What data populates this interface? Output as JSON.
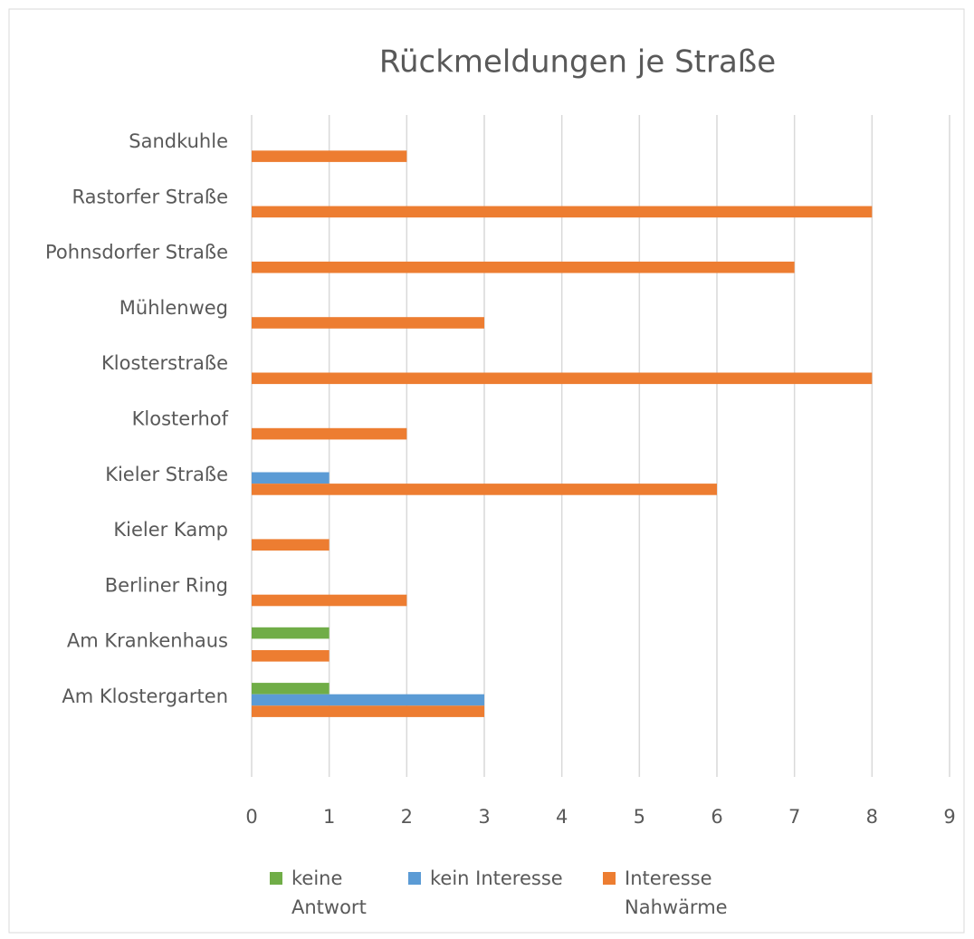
{
  "chart_data": {
    "type": "bar",
    "orientation": "horizontal",
    "title": "Rückmeldungen je Straße",
    "categories": [
      "Sandkuhle",
      "Rastorfer Straße",
      "Pohnsdorfer Straße",
      "Mühlenweg",
      "Klosterstraße",
      "Klosterhof",
      "Kieler Straße",
      "Kieler Kamp",
      "Berliner Ring",
      "Am Krankenhaus",
      "Am Klostergarten"
    ],
    "series": [
      {
        "name": "keine Antwort",
        "color": "#70ad47",
        "values": [
          0,
          0,
          0,
          0,
          0,
          0,
          0,
          0,
          0,
          1,
          1
        ]
      },
      {
        "name": "kein Interesse",
        "color": "#5b9bd5",
        "values": [
          0,
          0,
          0,
          0,
          0,
          0,
          1,
          0,
          0,
          0,
          3
        ]
      },
      {
        "name": "Interesse Nahwärme",
        "color": "#ed7d31",
        "values": [
          2,
          8,
          7,
          3,
          8,
          2,
          6,
          1,
          2,
          1,
          3
        ]
      }
    ],
    "xlim": [
      0,
      9
    ],
    "xticks": [
      0,
      1,
      2,
      3,
      4,
      5,
      6,
      7,
      8,
      9
    ],
    "grid": true,
    "legend": "bottom"
  }
}
